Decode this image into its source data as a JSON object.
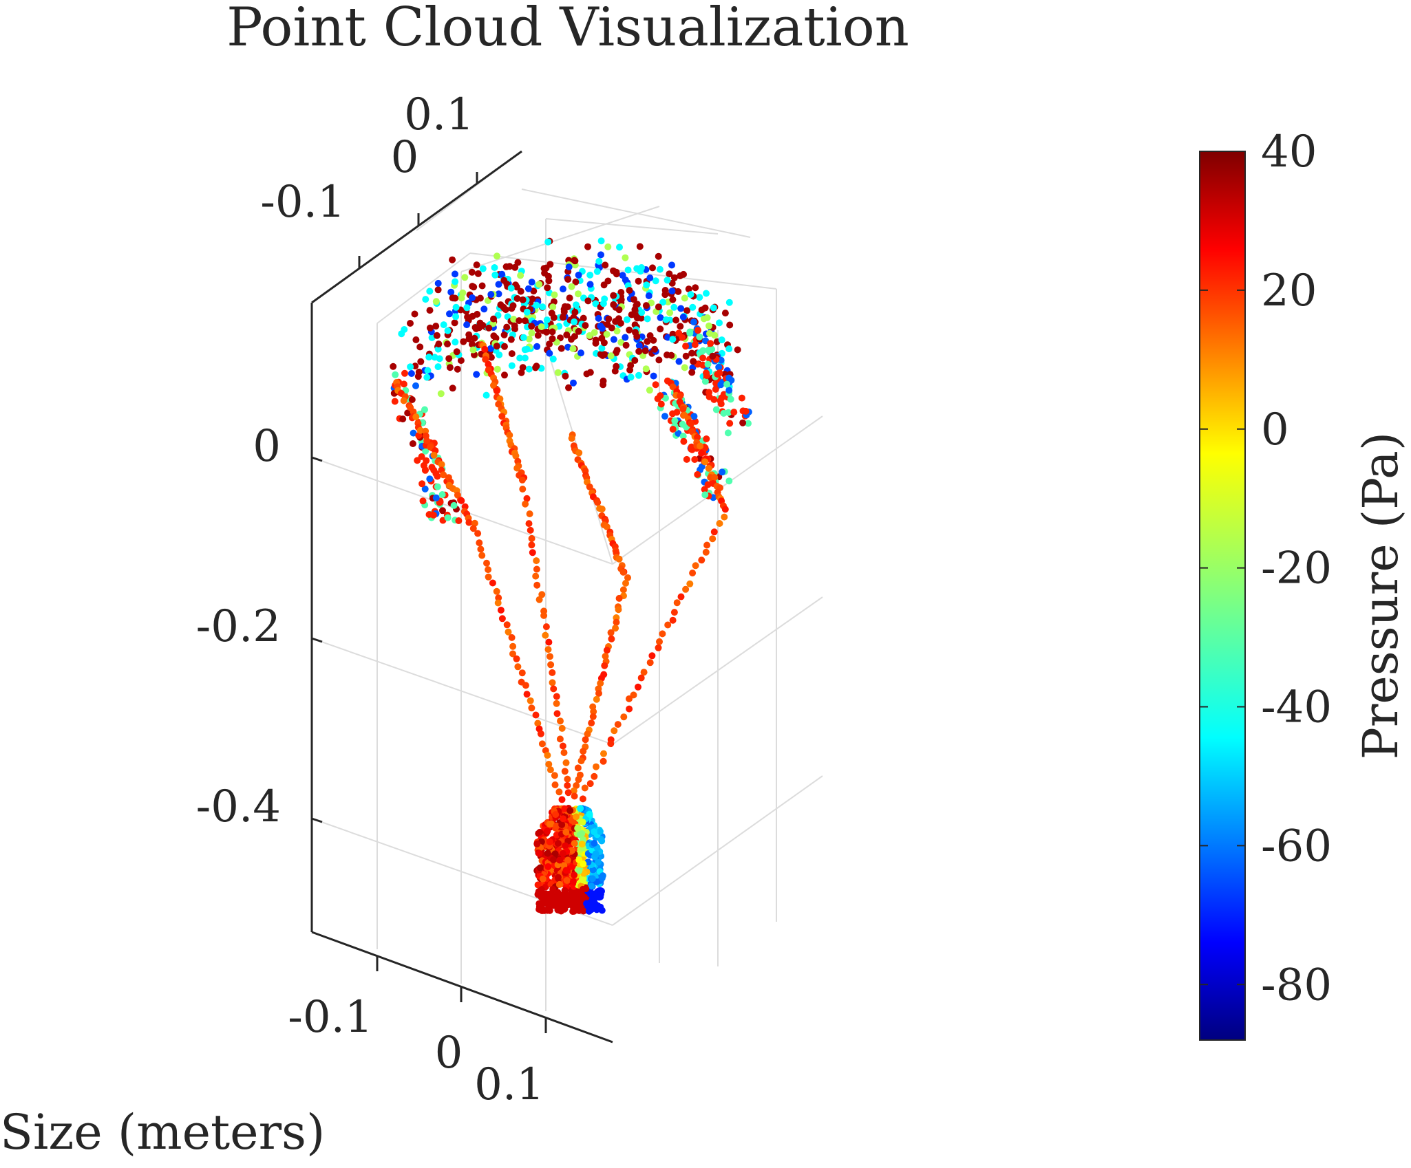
{
  "chart_data": {
    "type": "scatter",
    "subtype": "scatter3d",
    "title": "Point Cloud Visualization",
    "xlabel": "Size (meters)",
    "ylabel": "",
    "zlabel": "",
    "x_ticks": [
      "-0.1",
      "0",
      "0.1"
    ],
    "y_ticks": [
      "-0.1",
      "0",
      "0.1"
    ],
    "z_ticks": [
      "0",
      "-0.2",
      "-0.4"
    ],
    "grid": true,
    "colormap": "jet",
    "colorbar": {
      "label": "Pressure (Pa)",
      "ticks": [
        "40",
        "20",
        "0",
        "-20",
        "-40",
        "-60",
        "-80"
      ],
      "tick_values": [
        40,
        20,
        0,
        -20,
        -40,
        -60,
        -80
      ],
      "range": [
        -88,
        40
      ]
    },
    "description_series": [
      {
        "name": "",
        "part": "canopy",
        "pressure_mix": [
          -80,
          40
        ]
      },
      {
        "name": "",
        "part": "suspension-lines",
        "pressure_approx": 12
      },
      {
        "name": "",
        "part": "payload",
        "pressure_mix": [
          -70,
          35
        ]
      }
    ]
  }
}
